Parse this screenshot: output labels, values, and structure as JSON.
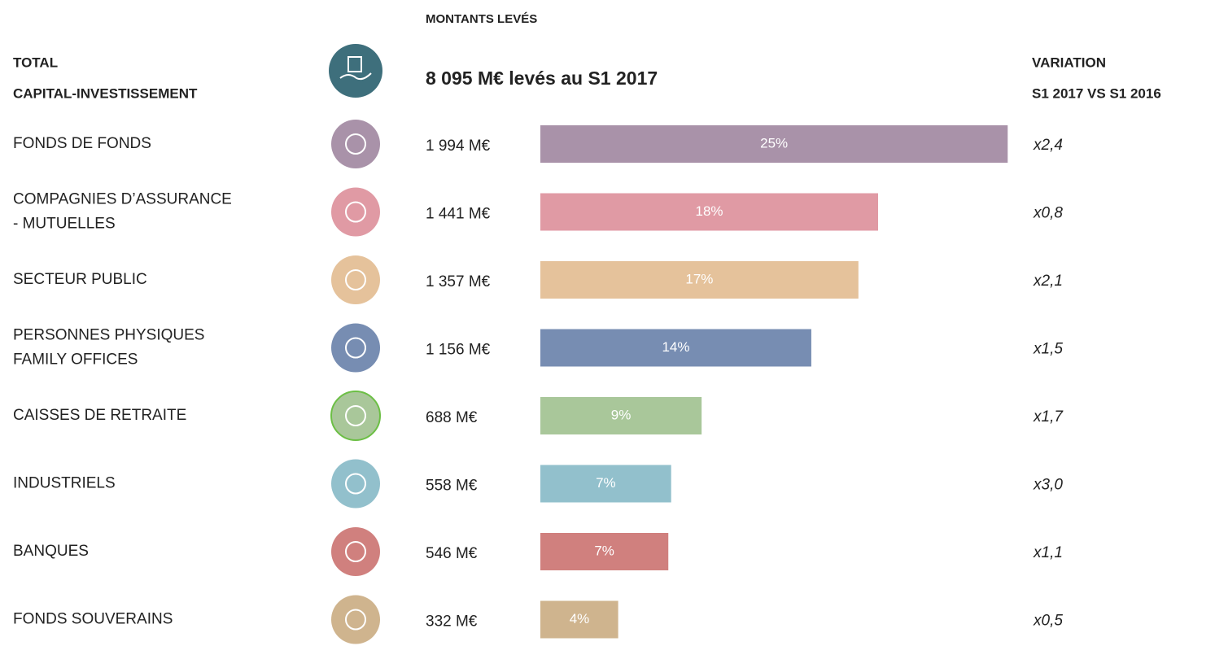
{
  "chart_data": {
    "type": "bar",
    "title": "MONTANTS LEVÉS",
    "left_header": [
      "TOTAL",
      "CAPITAL-INVESTISSEMENT"
    ],
    "total_label": "8 095 M€ levés au S1 2017",
    "right_header": [
      "VARIATION",
      "S1 2017 VS S1 2016"
    ],
    "categories": [
      [
        "FONDS DE FONDS"
      ],
      [
        "COMPAGNIES D’ASSURANCE",
        " - MUTUELLES"
      ],
      [
        "SECTEUR PUBLIC"
      ],
      [
        "PERSONNES PHYSIQUES",
        "FAMILY OFFICES"
      ],
      [
        "CAISSES DE RETRAITE"
      ],
      [
        "INDUSTRIELS"
      ],
      [
        "BANQUES"
      ],
      [
        "FONDS SOUVERAINS"
      ]
    ],
    "values": [
      1994,
      1441,
      1357,
      1156,
      688,
      558,
      546,
      332
    ],
    "value_labels": [
      "1 994 M€",
      "1 441 M€",
      "1 357 M€",
      "1 156 M€",
      "688 M€",
      "558 M€",
      "546 M€",
      "332 M€"
    ],
    "shares": [
      "25%",
      "18%",
      "17%",
      "14%",
      "9%",
      "7%",
      "7%",
      "4%"
    ],
    "variations": [
      "x2,4",
      "x0,8",
      "x2,1",
      "x1,5",
      "x1,7",
      "x3,0",
      "x1,1",
      "x0,5"
    ],
    "colors": [
      "#a992a9",
      "#e09aa4",
      "#e5c29b",
      "#778db2",
      "#a9c79a",
      "#92c0cc",
      "#d0807e",
      "#cfb48e"
    ],
    "header_color": "#3e6f7c"
  }
}
